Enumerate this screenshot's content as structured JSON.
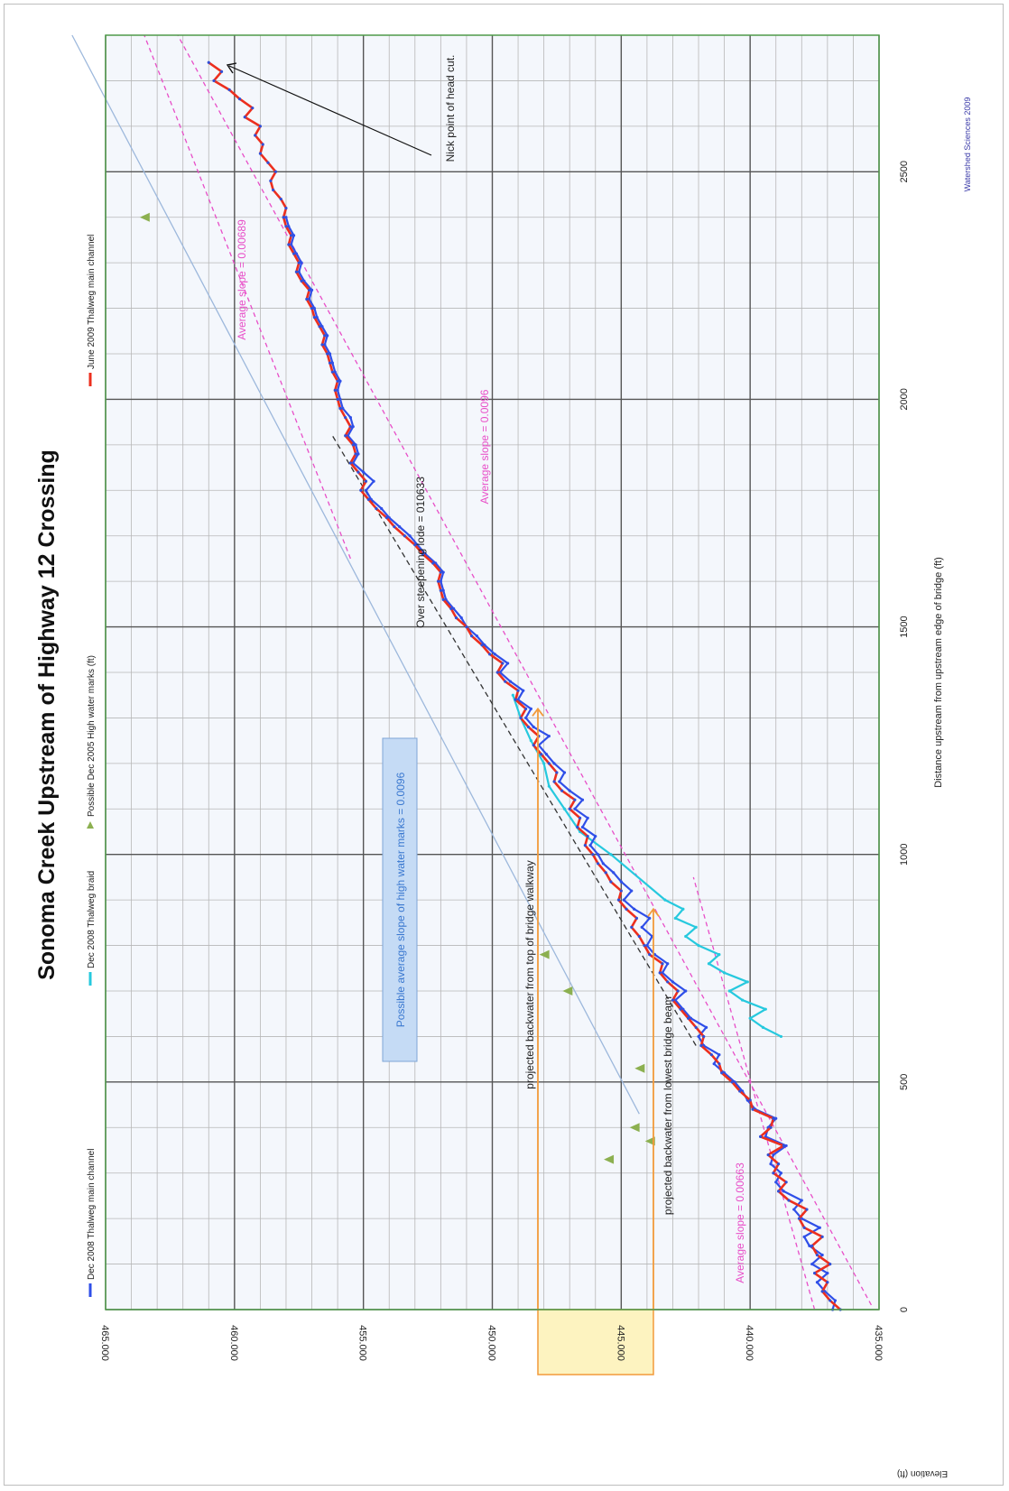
{
  "chart_data": {
    "type": "line",
    "title": "Sonoma Creek Upstream of Highway 12 Crossing",
    "xlabel": "Distance upstream from upstream edge of bridge (ft)",
    "ylabel": "Elevation (ft)",
    "xlim": [
      0,
      2800
    ],
    "ylim": [
      435,
      465
    ],
    "x_ticks": [
      "0",
      "500",
      "1000",
      "1500",
      "2000",
      "2500"
    ],
    "y_ticks": [
      "435.000",
      "440.000",
      "445.000",
      "450.000",
      "455.000",
      "460.000",
      "465.000"
    ],
    "grid": true,
    "legend_position": "top",
    "credit": "Watershed Sciences 2009",
    "series": [
      {
        "name": "Dec 2008 Thalweg main channel",
        "color": "#2f4fe8",
        "marker": "dot",
        "x": [
          0,
          20,
          40,
          60,
          80,
          100,
          120,
          140,
          160,
          180,
          200,
          220,
          240,
          260,
          280,
          300,
          320,
          340,
          360,
          380,
          400,
          420,
          440,
          460,
          480,
          500,
          520,
          540,
          560,
          580,
          600,
          620,
          640,
          660,
          680,
          700,
          720,
          740,
          760,
          780,
          800,
          820,
          840,
          860,
          880,
          900,
          920,
          940,
          960,
          980,
          1000,
          1020,
          1040,
          1060,
          1080,
          1100,
          1120,
          1140,
          1160,
          1180,
          1200,
          1220,
          1240,
          1260,
          1280,
          1300,
          1320,
          1340,
          1360,
          1380,
          1400,
          1420,
          1440,
          1460,
          1480,
          1500,
          1520,
          1540,
          1560,
          1580,
          1600,
          1620,
          1640,
          1660,
          1680,
          1700,
          1720,
          1740,
          1760,
          1780,
          1800,
          1820,
          1840,
          1860,
          1880,
          1900,
          1920,
          1940,
          1960,
          1980,
          2000,
          2020,
          2040,
          2060,
          2080,
          2100,
          2120,
          2140,
          2160,
          2180,
          2200,
          2220,
          2240,
          2260,
          2280,
          2300,
          2320,
          2340,
          2360,
          2380,
          2400
        ],
        "y": [
          436.8,
          436.7,
          437.1,
          437.4,
          437.0,
          437.6,
          437.2,
          437.7,
          437.9,
          437.3,
          438.0,
          438.3,
          438.0,
          438.7,
          439.0,
          438.8,
          439.2,
          439.1,
          438.6,
          439.4,
          439.3,
          439.0,
          439.8,
          440.1,
          440.3,
          440.6,
          441.0,
          441.4,
          441.2,
          441.8,
          442.0,
          441.7,
          442.3,
          442.6,
          442.9,
          442.5,
          443.0,
          443.4,
          443.2,
          443.7,
          444.0,
          443.8,
          444.2,
          443.9,
          444.5,
          444.9,
          444.6,
          445.0,
          445.3,
          445.7,
          445.9,
          446.2,
          446.0,
          446.5,
          446.3,
          446.8,
          446.5,
          447.0,
          447.4,
          447.2,
          447.6,
          447.9,
          448.2,
          447.8,
          448.4,
          448.7,
          448.5,
          449.0,
          448.8,
          449.3,
          449.7,
          449.4,
          449.9,
          450.3,
          450.6,
          451.0,
          451.2,
          451.5,
          451.8,
          451.9,
          452.0,
          451.9,
          452.2,
          452.6,
          452.9,
          453.2,
          453.6,
          454.0,
          454.3,
          454.7,
          454.9,
          454.6,
          455.0,
          455.4,
          455.2,
          455.3,
          455.6,
          455.4,
          455.5,
          455.8,
          455.9,
          456.0,
          455.9,
          456.1,
          456.2,
          456.3,
          456.5,
          456.4,
          456.6,
          456.8,
          456.9,
          457.1,
          457.0,
          457.3,
          457.5,
          457.4,
          457.6,
          457.8,
          457.7,
          457.9,
          458.0
        ]
      },
      {
        "name": "Dec 2008 Thalweg braid",
        "color": "#26c9de",
        "marker": "dot",
        "x": [
          600,
          620,
          640,
          660,
          680,
          700,
          720,
          740,
          760,
          780,
          800,
          820,
          840,
          860,
          880,
          900,
          1000,
          1050,
          1100,
          1150,
          1200,
          1250,
          1300,
          1350
        ],
        "y": [
          438.8,
          439.5,
          440.0,
          439.4,
          440.3,
          440.8,
          440.1,
          441.0,
          441.6,
          441.2,
          442.0,
          442.5,
          442.1,
          442.9,
          442.6,
          443.3,
          445.4,
          446.6,
          447.2,
          447.8,
          448.0,
          448.5,
          448.9,
          449.2
        ]
      },
      {
        "name": "Possible Dec 2005 High water marks (ft)",
        "color": "#8cb050",
        "marker": "triangle",
        "x": [
          330,
          370,
          400,
          530,
          700,
          780,
          2400
        ],
        "y": [
          445.5,
          443.9,
          444.5,
          444.3,
          447.1,
          448.0,
          463.5
        ]
      },
      {
        "name": "June 2009 Thalweg main channel",
        "color": "#ec2f1e",
        "marker": "dot",
        "x": [
          0,
          20,
          40,
          60,
          80,
          100,
          120,
          140,
          160,
          180,
          200,
          220,
          240,
          260,
          280,
          300,
          320,
          340,
          360,
          380,
          400,
          420,
          440,
          460,
          480,
          500,
          520,
          540,
          560,
          580,
          600,
          620,
          640,
          660,
          680,
          700,
          720,
          740,
          760,
          780,
          800,
          820,
          840,
          860,
          880,
          900,
          920,
          940,
          960,
          980,
          1000,
          1020,
          1040,
          1060,
          1080,
          1100,
          1120,
          1140,
          1160,
          1180,
          1200,
          1220,
          1240,
          1260,
          1280,
          1300,
          1320,
          1340,
          1360,
          1380,
          1400,
          1420,
          1440,
          1460,
          1480,
          1500,
          1520,
          1540,
          1560,
          1580,
          1600,
          1620,
          1640,
          1660,
          1680,
          1700,
          1720,
          1740,
          1760,
          1780,
          1800,
          1820,
          1840,
          1860,
          1880,
          1900,
          1920,
          1940,
          1960,
          1980,
          2000,
          2020,
          2040,
          2060,
          2080,
          2100,
          2120,
          2140,
          2160,
          2180,
          2200,
          2220,
          2240,
          2260,
          2280,
          2300,
          2320,
          2340,
          2360,
          2380,
          2400,
          2420,
          2440,
          2460,
          2480,
          2500,
          2520,
          2540,
          2560,
          2580,
          2600,
          2620,
          2640,
          2660,
          2680,
          2700,
          2720,
          2740
        ],
        "y": [
          436.5,
          436.9,
          437.2,
          437.0,
          437.5,
          436.9,
          437.4,
          437.6,
          437.2,
          437.9,
          438.1,
          437.8,
          438.5,
          438.9,
          438.6,
          439.1,
          438.9,
          439.3,
          438.7,
          439.6,
          439.2,
          439.1,
          439.9,
          440.0,
          440.4,
          440.7,
          441.1,
          441.2,
          441.5,
          441.9,
          441.8,
          442.1,
          442.4,
          442.7,
          443.0,
          442.8,
          443.2,
          443.5,
          443.4,
          443.9,
          444.1,
          444.3,
          444.6,
          444.4,
          444.8,
          445.1,
          445.0,
          445.4,
          445.6,
          445.9,
          446.1,
          446.4,
          446.3,
          446.7,
          446.6,
          447.0,
          446.8,
          447.3,
          447.6,
          447.5,
          447.8,
          448.1,
          448.4,
          448.2,
          448.6,
          448.9,
          448.7,
          449.1,
          449.0,
          449.5,
          449.8,
          449.6,
          450.1,
          450.4,
          450.8,
          451.0,
          451.4,
          451.6,
          451.9,
          452.0,
          452.1,
          452.0,
          452.3,
          452.7,
          453.0,
          453.4,
          453.8,
          454.1,
          454.5,
          454.8,
          455.1,
          454.9,
          455.2,
          455.5,
          455.3,
          455.4,
          455.7,
          455.5,
          455.7,
          455.9,
          456.0,
          456.1,
          456.0,
          456.2,
          456.3,
          456.4,
          456.6,
          456.5,
          456.7,
          456.9,
          457.0,
          457.2,
          457.1,
          457.4,
          457.6,
          457.5,
          457.7,
          457.9,
          457.8,
          458.0,
          458.1,
          458.0,
          458.2,
          458.5,
          458.6,
          458.4,
          458.7,
          459.0,
          458.9,
          459.2,
          459.0,
          459.6,
          459.3,
          459.8,
          460.2,
          460.8,
          460.5,
          461.0
        ]
      }
    ],
    "trend_lines": [
      {
        "label": "Average slope = 0.00689",
        "color": "#e84ec8",
        "style": "dashed"
      },
      {
        "label": "Average slope = 0.0096",
        "color": "#e84ec8",
        "style": "dashed"
      },
      {
        "label": "Average slope = 0.00663",
        "color": "#e84ec8",
        "style": "dashed"
      },
      {
        "label": "Over steepening lode = 010633",
        "color": "#333333",
        "style": "dashed"
      },
      {
        "label": "Possible average slope of high water marks = 0.0096",
        "color": "#9db8dc",
        "style": "solid"
      }
    ],
    "annotations": [
      "Nick point of head cut.",
      "projected backwater from top of bridge walkway",
      "projected backwater from lowest bridge beam"
    ]
  }
}
